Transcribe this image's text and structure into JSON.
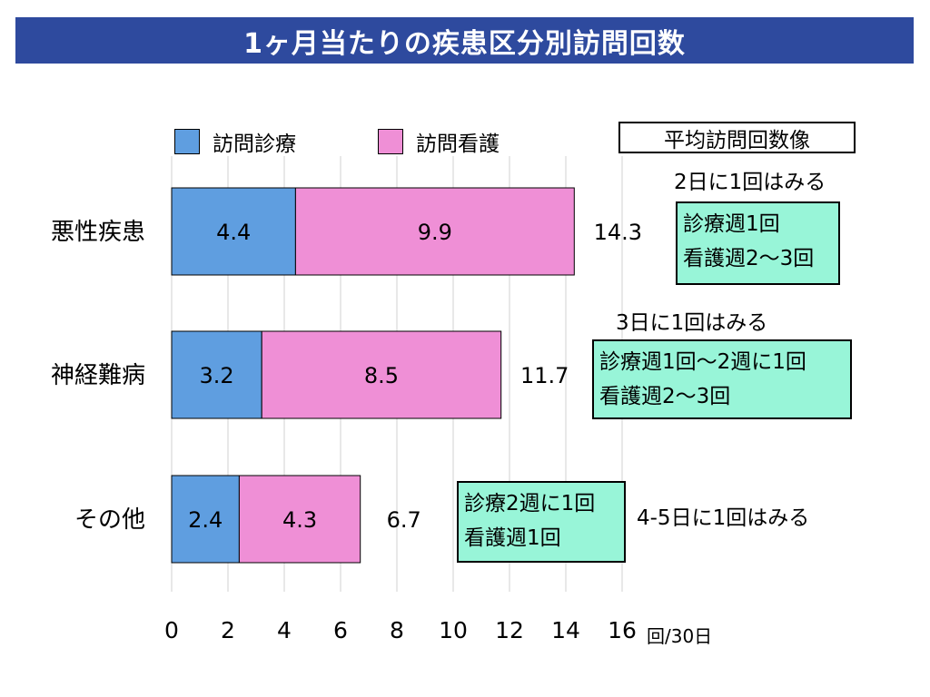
{
  "title": "1ヶ月当たりの疾患区分別訪問回数",
  "legend": {
    "series1": "訪問診療",
    "series2": "訪問看護",
    "average_box": "平均訪問回数像"
  },
  "unit_label": "回/30日",
  "colors": {
    "title_bg": "#2e4a9e",
    "series1": "#5f9ee0",
    "series2": "#ef8fd6",
    "plan_bg": "#98f5d8"
  },
  "chart_data": {
    "type": "bar",
    "orientation": "horizontal",
    "stacked": true,
    "title": "1ヶ月当たりの疾患区分別訪問回数",
    "categories": [
      "悪性疾患",
      "神経難病",
      "その他"
    ],
    "series": [
      {
        "name": "訪問診療",
        "values": [
          4.4,
          3.2,
          2.4
        ],
        "labels": [
          "4.4",
          "3.2",
          "2.4"
        ]
      },
      {
        "name": "訪問看護",
        "values": [
          9.9,
          8.5,
          4.3
        ],
        "labels": [
          "9.9",
          "8.5",
          "4.3"
        ]
      }
    ],
    "totals": [
      "14.3",
      "11.7",
      "6.7"
    ],
    "xticks": [
      "0",
      "2",
      "4",
      "6",
      "8",
      "10",
      "12",
      "14",
      "16"
    ],
    "xlim": [
      0,
      16
    ],
    "xlabel": "回/30日",
    "grid": true
  },
  "annotations": {
    "malignant": {
      "frequency": "2日に1回はみる",
      "line1": "診療週1回",
      "line2": "看護週2〜3回"
    },
    "neuro": {
      "frequency": "3日に1回はみる",
      "line1": "診療週1回〜2週に1回",
      "line2": "看護週2〜3回"
    },
    "other": {
      "frequency": "4-5日に1回はみる",
      "line1": "診療2週に1回",
      "line2": "看護週1回"
    }
  }
}
